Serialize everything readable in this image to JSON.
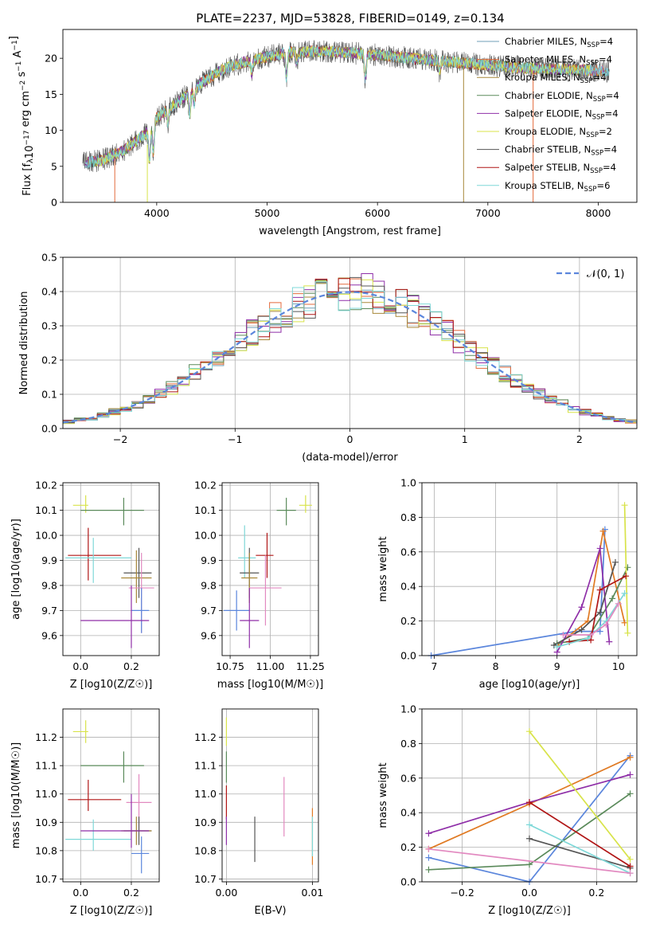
{
  "figure": {
    "title": "PLATE=2237, MJD=53828, FIBERID=0149, z=0.134"
  },
  "colors": {
    "Chabrier MILES": "#6f9fb7",
    "Salpeter MILES": "#e36a3b",
    "Kroupa MILES": "#a8883a",
    "Chabrier ELODIE": "#5a8a5a",
    "Salpeter ELODIE": "#8f2fa8",
    "Kroupa ELODIE": "#d8e34a",
    "Chabrier STELIB": "#555555",
    "Salpeter STELIB": "#b01515",
    "Kroupa STELIB": "#7fd8d8",
    "blue": "#5b86dc",
    "orange": "#e07a23",
    "pink": "#e289c0",
    "gauss": "#5b86dc"
  },
  "chart_data": [
    {
      "id": "spectrum",
      "type": "line",
      "title": "PLATE=2237, MJD=53828, FIBERID=0149, z=0.134",
      "xlabel": "wavelength [Angstrom, rest frame]",
      "ylabel": "Flux [f_λ 10^-17 erg cm^-2 s^-1 A^-1]",
      "xlim": [
        3150,
        8350
      ],
      "ylim": [
        0,
        24
      ],
      "xticks": [
        "4000",
        "5000",
        "6000",
        "7000",
        "8000"
      ],
      "yticks": [
        "0",
        "5",
        "10",
        "15",
        "20"
      ],
      "grid": false,
      "legend": {
        "position": "right",
        "entries": [
          {
            "series": "Chabrier MILES",
            "label": "Chabrier MILES, N",
            "sub": "SSP",
            "tail": "=4"
          },
          {
            "series": "Salpeter MILES",
            "label": "Salpeter MILES, N",
            "sub": "SSP",
            "tail": "=4"
          },
          {
            "series": "Kroupa MILES",
            "label": "Kroupa MILES, N",
            "sub": "SSP",
            "tail": "=4"
          },
          {
            "series": "Chabrier ELODIE",
            "label": "Chabrier ELODIE, N",
            "sub": "SSP",
            "tail": "=4"
          },
          {
            "series": "Salpeter ELODIE",
            "label": "Salpeter ELODIE, N",
            "sub": "SSP",
            "tail": "=4"
          },
          {
            "series": "Kroupa ELODIE",
            "label": "Kroupa ELODIE, N",
            "sub": "SSP",
            "tail": "=2"
          },
          {
            "series": "Chabrier STELIB",
            "label": "Chabrier STELIB, N",
            "sub": "SSP",
            "tail": "=4"
          },
          {
            "series": "Salpeter STELIB",
            "label": "Salpeter STELIB, N",
            "sub": "SSP",
            "tail": "=4"
          },
          {
            "series": "Kroupa STELIB",
            "label": "Kroupa STELIB, N",
            "sub": "SSP",
            "tail": "=6"
          }
        ]
      },
      "continuum": {
        "x": [
          3350,
          3500,
          3700,
          3900,
          4000,
          4200,
          4400,
          4600,
          4800,
          5000,
          5200,
          5500,
          5800,
          6000,
          6300,
          6600,
          6900,
          7200,
          7500,
          7800,
          8100
        ],
        "y": [
          5.5,
          5.8,
          7.2,
          9.5,
          11.8,
          14.0,
          16.5,
          18.5,
          19.5,
          20.2,
          20.8,
          21.0,
          20.7,
          20.5,
          20.0,
          19.6,
          19.2,
          18.8,
          18.5,
          18.4,
          18.2
        ]
      },
      "absorption_features": [
        {
          "x": 3934,
          "depth": 4.5
        },
        {
          "x": 3969,
          "depth": 4.0
        },
        {
          "x": 4102,
          "depth": 2.0
        },
        {
          "x": 4300,
          "depth": 3.0
        },
        {
          "x": 4340,
          "depth": 2.0
        },
        {
          "x": 4861,
          "depth": 2.0
        },
        {
          "x": 5175,
          "depth": 3.5
        },
        {
          "x": 5270,
          "depth": 1.5
        },
        {
          "x": 5890,
          "depth": 3.5
        },
        {
          "x": 6563,
          "depth": 1.5
        }
      ]
    },
    {
      "id": "residuals",
      "type": "line",
      "xlabel": "(data-model)/error",
      "ylabel": "Normed distribution",
      "xlim": [
        -2.5,
        2.5
      ],
      "ylim": [
        0,
        0.5
      ],
      "xticks": [
        "−2",
        "−1",
        "0",
        "1",
        "2"
      ],
      "yticks": [
        "0.0",
        "0.1",
        "0.2",
        "0.3",
        "0.4",
        "0.5"
      ],
      "grid": true,
      "legend": {
        "position": "top-right",
        "label": "𝒩(0, 1)"
      },
      "gaussian": {
        "mean": 0,
        "sigma": 1
      },
      "bin_width": 0.1,
      "series_order": [
        "Chabrier MILES",
        "Salpeter MILES",
        "Kroupa MILES",
        "Chabrier ELODIE",
        "Salpeter ELODIE",
        "Kroupa ELODIE",
        "Chabrier STELIB",
        "Salpeter STELIB",
        "Kroupa STELIB"
      ]
    },
    {
      "id": "age_vs_Z",
      "type": "scatter",
      "xlabel": "Z [log10(Z/Z☉)]",
      "ylabel": "age [log10(age/yr)]",
      "xlim": [
        -0.07,
        0.31
      ],
      "ylim": [
        9.52,
        10.21
      ],
      "xticks": [
        "0.0",
        "0.2"
      ],
      "yticks": [
        "9.6",
        "9.7",
        "9.8",
        "9.9",
        "10.0",
        "10.1",
        "10.2"
      ],
      "grid": true,
      "points": [
        {
          "color": "Kroupa ELODIE",
          "x": 0.02,
          "y": 10.12,
          "xerr": [
            0.05,
            0.01
          ],
          "yerr": [
            0.03,
            0.04
          ]
        },
        {
          "color": "Chabrier ELODIE",
          "x": 0.17,
          "y": 10.1,
          "xerr": [
            0.17,
            0.08
          ],
          "yerr": [
            0.06,
            0.05
          ]
        },
        {
          "color": "Salpeter STELIB",
          "x": 0.03,
          "y": 9.92,
          "xerr": [
            0.08,
            0.13
          ],
          "yerr": [
            0.1,
            0.11
          ]
        },
        {
          "color": "Kroupa STELIB",
          "x": 0.05,
          "y": 9.91,
          "xerr": [
            0.11,
            0.15
          ],
          "yerr": [
            0.1,
            0.08
          ]
        },
        {
          "color": "Chabrier STELIB",
          "x": 0.23,
          "y": 9.85,
          "xerr": [
            0.06,
            0.05
          ],
          "yerr": [
            0.1,
            0.1
          ]
        },
        {
          "color": "Kroupa MILES",
          "x": 0.22,
          "y": 9.83,
          "xerr": [
            0.06,
            0.06
          ],
          "yerr": [
            0.1,
            0.11
          ]
        },
        {
          "color": "pink",
          "x": 0.24,
          "y": 9.79,
          "xerr": [
            0.05,
            0.05
          ],
          "yerr": [
            0.18,
            0.14
          ]
        },
        {
          "color": "blue",
          "x": 0.24,
          "y": 9.7,
          "xerr": [
            0.04,
            0.03
          ],
          "yerr": [
            0.09,
            0.09
          ]
        },
        {
          "color": "Salpeter ELODIE",
          "x": 0.2,
          "y": 9.66,
          "xerr": [
            0.2,
            0.07
          ],
          "yerr": [
            0.11,
            0.14
          ]
        }
      ]
    },
    {
      "id": "age_vs_mass",
      "type": "scatter",
      "xlabel": "mass [log10(M/M☉)]",
      "ylabel": "",
      "xlim": [
        10.7,
        11.3
      ],
      "ylim": [
        9.52,
        10.21
      ],
      "xticks": [
        "10.75",
        "11.00",
        "11.25"
      ],
      "yticks": [
        "9.6",
        "9.7",
        "9.8",
        "9.9",
        "10.0",
        "10.1",
        "10.2"
      ],
      "grid": true,
      "points": [
        {
          "color": "Kroupa ELODIE",
          "x": 11.22,
          "y": 10.12,
          "xerr": [
            0.04,
            0.04
          ],
          "yerr": [
            0.03,
            0.04
          ]
        },
        {
          "color": "Chabrier ELODIE",
          "x": 11.1,
          "y": 10.1,
          "xerr": [
            0.06,
            0.06
          ],
          "yerr": [
            0.06,
            0.05
          ]
        },
        {
          "color": "Salpeter STELIB",
          "x": 10.98,
          "y": 9.92,
          "xerr": [
            0.07,
            0.04
          ],
          "yerr": [
            0.09,
            0.09
          ]
        },
        {
          "color": "Kroupa STELIB",
          "x": 10.84,
          "y": 9.91,
          "xerr": [
            0.04,
            0.07
          ],
          "yerr": [
            0.08,
            0.13
          ]
        },
        {
          "color": "Chabrier STELIB",
          "x": 10.87,
          "y": 9.85,
          "xerr": [
            0.06,
            0.06
          ],
          "yerr": [
            0.1,
            0.1
          ]
        },
        {
          "color": "Kroupa MILES",
          "x": 10.87,
          "y": 9.83,
          "xerr": [
            0.05,
            0.05
          ],
          "yerr": [
            0.1,
            0.1
          ]
        },
        {
          "color": "pink",
          "x": 10.97,
          "y": 9.79,
          "xerr": [
            0.1,
            0.1
          ],
          "yerr": [
            0.15,
            0.13
          ]
        },
        {
          "color": "blue",
          "x": 10.79,
          "y": 9.7,
          "xerr": [
            0.08,
            0.08
          ],
          "yerr": [
            0.08,
            0.08
          ]
        },
        {
          "color": "Salpeter ELODIE",
          "x": 10.87,
          "y": 9.66,
          "xerr": [
            0.06,
            0.06
          ],
          "yerr": [
            0.11,
            0.13
          ]
        }
      ]
    },
    {
      "id": "mass_weight_vs_age",
      "type": "line",
      "xlabel": "age [log10(age/yr)]",
      "ylabel": "mass weight",
      "xlim": [
        6.8,
        10.3
      ],
      "ylim": [
        0,
        1
      ],
      "xticks": [
        "7",
        "8",
        "9",
        "10"
      ],
      "yticks": [
        "0.0",
        "0.2",
        "0.4",
        "0.6",
        "0.8",
        "1.0"
      ],
      "grid": true,
      "series": [
        {
          "color": "blue",
          "x": [
            6.95,
            9.3,
            9.7,
            9.78
          ],
          "y": [
            0.0,
            0.14,
            0.14,
            0.73
          ]
        },
        {
          "color": "orange",
          "x": [
            9.0,
            9.5,
            9.75,
            10.1
          ],
          "y": [
            0.06,
            0.2,
            0.72,
            0.19
          ]
        },
        {
          "color": "Chabrier ELODIE",
          "x": [
            9.0,
            9.5,
            9.9,
            10.15
          ],
          "y": [
            0.07,
            0.1,
            0.33,
            0.51
          ]
        },
        {
          "color": "Salpeter ELODIE",
          "x": [
            9.0,
            9.4,
            9.7,
            9.85
          ],
          "y": [
            0.02,
            0.28,
            0.62,
            0.08
          ]
        },
        {
          "color": "Kroupa ELODIE",
          "x": [
            10.1,
            10.15
          ],
          "y": [
            0.87,
            0.13
          ]
        },
        {
          "color": "Chabrier STELIB",
          "x": [
            8.95,
            9.4,
            9.7,
            9.95
          ],
          "y": [
            0.06,
            0.15,
            0.25,
            0.54
          ]
        },
        {
          "color": "Salpeter STELIB",
          "x": [
            9.2,
            9.55,
            9.7,
            10.12
          ],
          "y": [
            0.08,
            0.09,
            0.38,
            0.46
          ]
        },
        {
          "color": "Kroupa STELIB",
          "x": [
            9.0,
            9.5,
            9.8,
            10.1
          ],
          "y": [
            0.05,
            0.1,
            0.2,
            0.36
          ]
        },
        {
          "color": "pink",
          "x": [
            9.1,
            9.55,
            9.8,
            10.0
          ],
          "y": [
            0.12,
            0.12,
            0.18,
            0.3
          ]
        }
      ]
    },
    {
      "id": "mass_vs_Z",
      "type": "scatter",
      "xlabel": "Z [log10(Z/Z☉)]",
      "ylabel": "mass [log10(M/M☉)]",
      "xlim": [
        -0.07,
        0.31
      ],
      "ylim": [
        10.69,
        11.3
      ],
      "xticks": [
        "0.0",
        "0.2"
      ],
      "yticks": [
        "10.7",
        "10.8",
        "10.9",
        "11.0",
        "11.1",
        "11.2"
      ],
      "grid": true,
      "points": [
        {
          "color": "Kroupa ELODIE",
          "x": 0.02,
          "y": 11.22,
          "xerr": [
            0.05,
            0.01
          ],
          "yerr": [
            0.04,
            0.04
          ]
        },
        {
          "color": "Chabrier ELODIE",
          "x": 0.17,
          "y": 11.1,
          "xerr": [
            0.17,
            0.08
          ],
          "yerr": [
            0.06,
            0.05
          ]
        },
        {
          "color": "Salpeter STELIB",
          "x": 0.03,
          "y": 10.98,
          "xerr": [
            0.08,
            0.13
          ],
          "yerr": [
            0.04,
            0.07
          ]
        },
        {
          "color": "Kroupa STELIB",
          "x": 0.05,
          "y": 10.84,
          "xerr": [
            0.11,
            0.15
          ],
          "yerr": [
            0.04,
            0.07
          ]
        },
        {
          "color": "pink",
          "x": 0.23,
          "y": 10.97,
          "xerr": [
            0.05,
            0.05
          ],
          "yerr": [
            0.1,
            0.1
          ]
        },
        {
          "color": "Chabrier STELIB",
          "x": 0.23,
          "y": 10.87,
          "xerr": [
            0.06,
            0.05
          ],
          "yerr": [
            0.05,
            0.05
          ]
        },
        {
          "color": "Kroupa MILES",
          "x": 0.22,
          "y": 10.87,
          "xerr": [
            0.06,
            0.06
          ],
          "yerr": [
            0.05,
            0.05
          ]
        },
        {
          "color": "Salpeter ELODIE",
          "x": 0.2,
          "y": 10.87,
          "xerr": [
            0.2,
            0.07
          ],
          "yerr": [
            0.06,
            0.13
          ]
        },
        {
          "color": "blue",
          "x": 0.24,
          "y": 10.79,
          "xerr": [
            0.04,
            0.03
          ],
          "yerr": [
            0.07,
            0.06
          ]
        }
      ]
    },
    {
      "id": "mass_vs_ebv",
      "type": "scatter",
      "xlabel": "E(B-V)",
      "ylabel": "",
      "xlim": [
        -0.0005,
        0.0107
      ],
      "ylim": [
        10.69,
        11.3
      ],
      "xticks": [
        "0.00",
        "0.01"
      ],
      "yticks": [
        "10.7",
        "10.8",
        "10.9",
        "11.0",
        "11.1",
        "11.2"
      ],
      "grid": true,
      "points": [
        {
          "color": "Kroupa ELODIE",
          "x": 0.0,
          "y": 11.22,
          "xerr": [
            0,
            0
          ],
          "yerr": [
            0.05,
            0.05
          ]
        },
        {
          "color": "Chabrier ELODIE",
          "x": 0.0,
          "y": 11.1,
          "xerr": [
            0,
            0
          ],
          "yerr": [
            0.06,
            0.05
          ]
        },
        {
          "color": "Salpeter STELIB",
          "x": 0.0,
          "y": 10.98,
          "xerr": [
            0,
            0
          ],
          "yerr": [
            0.07,
            0.05
          ]
        },
        {
          "color": "Salpeter ELODIE",
          "x": 0.0,
          "y": 10.87,
          "xerr": [
            0,
            0
          ],
          "yerr": [
            0.05,
            0.05
          ]
        },
        {
          "color": "Chabrier STELIB",
          "x": 0.0033,
          "y": 10.84,
          "xerr": [
            0,
            0
          ],
          "yerr": [
            0.08,
            0.08
          ]
        },
        {
          "color": "pink",
          "x": 0.0067,
          "y": 10.96,
          "xerr": [
            0,
            0
          ],
          "yerr": [
            0.11,
            0.1
          ]
        },
        {
          "color": "orange",
          "x": 0.01,
          "y": 10.85,
          "xerr": [
            0,
            0
          ],
          "yerr": [
            0.1,
            0.1
          ]
        },
        {
          "color": "Kroupa STELIB",
          "x": 0.01,
          "y": 10.85,
          "xerr": [
            0,
            0
          ],
          "yerr": [
            0.07,
            0.07
          ]
        }
      ]
    },
    {
      "id": "mass_weight_vs_Z",
      "type": "line",
      "xlabel": "Z [log10(Z/Z☉)]",
      "ylabel": "mass weight",
      "xlim": [
        -0.32,
        0.32
      ],
      "ylim": [
        0,
        1
      ],
      "xticks": [
        "−0.2",
        "0.0",
        "0.2"
      ],
      "yticks": [
        "0.0",
        "0.2",
        "0.4",
        "0.6",
        "0.8",
        "1.0"
      ],
      "grid": true,
      "series": [
        {
          "color": "blue",
          "x": [
            -0.3,
            0.0,
            0.3
          ],
          "y": [
            0.14,
            0.0,
            0.73
          ]
        },
        {
          "color": "orange",
          "x": [
            -0.3,
            0.0,
            0.3
          ],
          "y": [
            0.19,
            0.45,
            0.72
          ]
        },
        {
          "color": "Chabrier ELODIE",
          "x": [
            -0.3,
            0.0,
            0.3
          ],
          "y": [
            0.07,
            0.1,
            0.51
          ]
        },
        {
          "color": "Salpeter ELODIE",
          "x": [
            -0.3,
            0.0,
            0.3
          ],
          "y": [
            0.28,
            0.46,
            0.62
          ]
        },
        {
          "color": "Kroupa ELODIE",
          "x": [
            0.0,
            0.3
          ],
          "y": [
            0.87,
            0.13
          ]
        },
        {
          "color": "Chabrier STELIB",
          "x": [
            0.0,
            0.3
          ],
          "y": [
            0.25,
            0.08
          ]
        },
        {
          "color": "Salpeter STELIB",
          "x": [
            0.0,
            0.3
          ],
          "y": [
            0.46,
            0.09
          ]
        },
        {
          "color": "Kroupa STELIB",
          "x": [
            0.0,
            0.3
          ],
          "y": [
            0.33,
            0.05
          ]
        },
        {
          "color": "pink",
          "x": [
            -0.3,
            0.3
          ],
          "y": [
            0.19,
            0.05
          ]
        }
      ]
    }
  ]
}
